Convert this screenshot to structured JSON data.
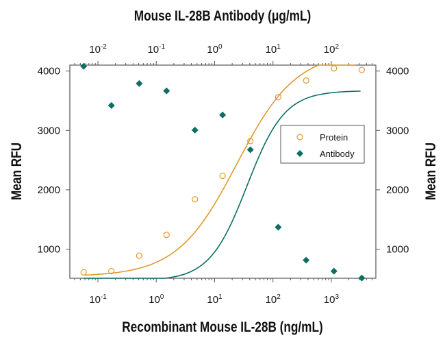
{
  "chart_data": {
    "type": "scatter",
    "title": "Mouse IL-28B Antibody (μg/mL)",
    "xlabel": "Recombinant Mouse IL-28B (ng/mL)",
    "ylabel": "Mean RFU",
    "ylabel_right": "Mean RFU",
    "xscale": "log",
    "xlim": [
      0.033,
      5800
    ],
    "x2lim": [
      0.0033,
      580
    ],
    "ylim": [
      510,
      4100
    ],
    "xticks": [
      {
        "v": 0.1,
        "base": "10",
        "exp": "-1"
      },
      {
        "v": 1,
        "base": "10",
        "exp": "0"
      },
      {
        "v": 10,
        "base": "10",
        "exp": "1"
      },
      {
        "v": 100,
        "base": "10",
        "exp": "2"
      },
      {
        "v": 1000,
        "base": "10",
        "exp": "3"
      }
    ],
    "x2ticks": [
      {
        "v": 0.01,
        "base": "10",
        "exp": "-2"
      },
      {
        "v": 0.1,
        "base": "10",
        "exp": "-1"
      },
      {
        "v": 1,
        "base": "10",
        "exp": "0"
      },
      {
        "v": 10,
        "base": "10",
        "exp": "1"
      },
      {
        "v": 100,
        "base": "10",
        "exp": "2"
      }
    ],
    "yticks": [
      "1000",
      "2000",
      "3000",
      "4000"
    ],
    "grid": false,
    "legend": "right",
    "series": [
      {
        "name": "Protein",
        "axis": "bottom",
        "marker": "open-circle",
        "color": "#e0982c",
        "x": [
          0.057,
          0.17,
          0.51,
          1.5,
          4.6,
          13.7,
          41,
          123,
          370,
          1110,
          3330
        ],
        "y": [
          610,
          630,
          890,
          1240,
          1840,
          2235,
          2820,
          3560,
          3840,
          4045,
          4020
        ]
      },
      {
        "name": "Antibody",
        "axis": "top",
        "marker": "filled-diamond",
        "color": "#0d6e63",
        "x": [
          0.0057,
          0.017,
          0.051,
          0.15,
          0.46,
          1.37,
          4.1,
          12.3,
          37,
          111,
          333
        ],
        "y": [
          4080,
          3420,
          3790,
          3665,
          3005,
          3260,
          2675,
          1370,
          815,
          630,
          515
        ]
      }
    ]
  }
}
